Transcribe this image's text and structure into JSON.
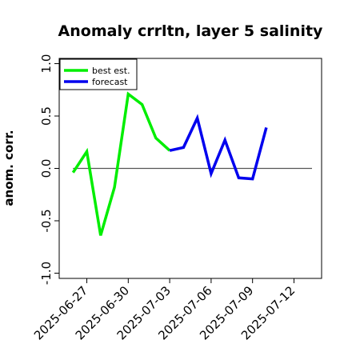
{
  "chart_data": {
    "type": "line",
    "title": "Anomaly crrltn, layer 5 salinity",
    "xlabel": "",
    "ylabel": "anom. corr.",
    "ylim": [
      -1.05,
      1.05
    ],
    "xlim": [
      "2025-06-25",
      "2025-07-14"
    ],
    "y_ticks": [
      -1.0,
      -0.5,
      0.0,
      0.5,
      1.0
    ],
    "y_tick_labels": [
      "-1.0",
      "-0.5",
      "0.0",
      "0.5",
      "1.0"
    ],
    "x_ticks": [
      "2025-06-27",
      "2025-06-30",
      "2025-07-03",
      "2025-07-06",
      "2025-07-09",
      "2025-07-12"
    ],
    "x_tick_labels": [
      "2025-06-27",
      "2025-06-30",
      "2025-07-03",
      "2025-07-06",
      "2025-07-09",
      "2025-07-12"
    ],
    "highlighted_tick": "2025-07-03",
    "highlight_color": "#228b22",
    "reference_line_y": 0.0,
    "grid": false,
    "legend_position": "top-left",
    "series": [
      {
        "name": "best est.",
        "color": "#00ee00",
        "x": [
          "2025-06-26",
          "2025-06-27",
          "2025-06-28",
          "2025-06-29",
          "2025-06-30",
          "2025-07-01",
          "2025-07-02",
          "2025-07-03"
        ],
        "values": [
          -0.04,
          0.16,
          -0.64,
          -0.18,
          0.71,
          0.61,
          0.29,
          0.17
        ]
      },
      {
        "name": "forecast",
        "color": "#0000ee",
        "x": [
          "2025-07-03",
          "2025-07-04",
          "2025-07-05",
          "2025-07-06",
          "2025-07-07",
          "2025-07-08",
          "2025-07-09",
          "2025-07-10"
        ],
        "values": [
          0.17,
          0.2,
          0.48,
          -0.05,
          0.27,
          -0.09,
          -0.1,
          0.39
        ]
      }
    ]
  }
}
